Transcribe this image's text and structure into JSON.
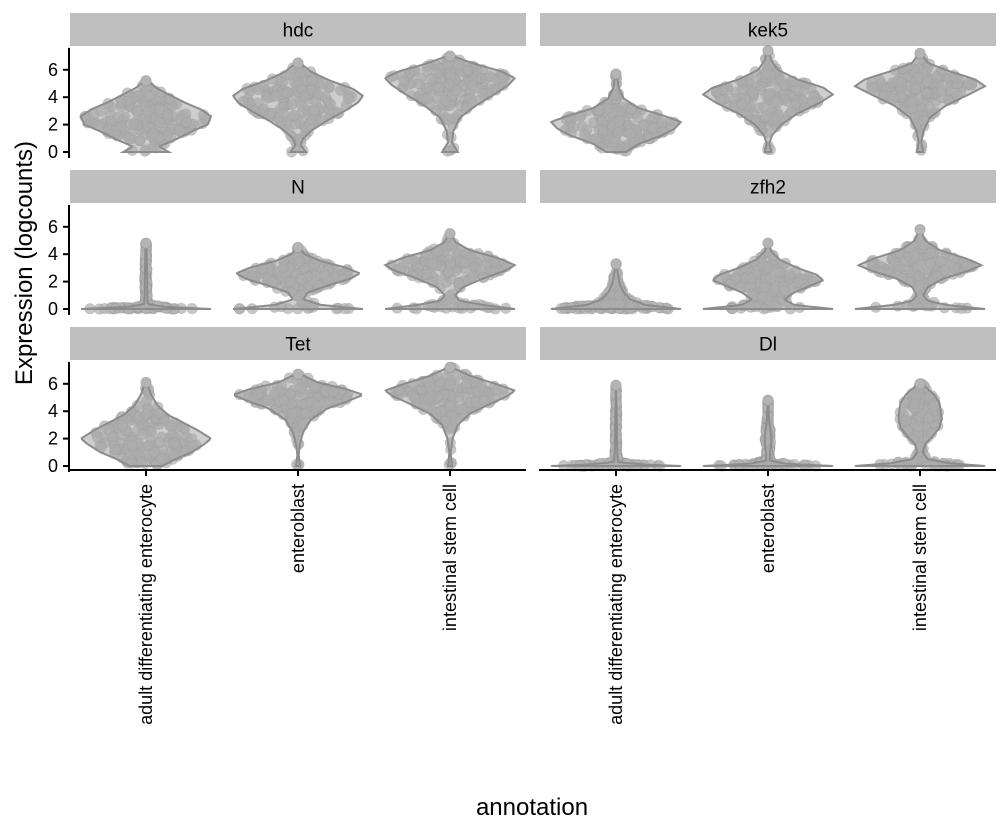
{
  "chart_data": {
    "type": "violin",
    "facet_layout": "3 rows x 2 columns",
    "xlabel": "annotation",
    "ylabel": "Expression (logcounts)",
    "categories": [
      "adult differentiating enterocyte",
      "enteroblast",
      "intestinal stem cell"
    ],
    "y_ticks": [
      0,
      2,
      4,
      6
    ],
    "ylim": [
      -0.2,
      7.6
    ],
    "colors": {
      "violin_fill": "#a6a6a6",
      "violin_outline": "#8c8c8c",
      "point": "#b4b4b4",
      "strip_background": "#bfbfbf",
      "axis": "#000000"
    },
    "panels": [
      {
        "gene": "hdc",
        "groups": [
          {
            "category": "adult differentiating enterocyte",
            "max": 5.2,
            "shape": [
              [
                0,
                0.35
              ],
              [
                0.4,
                0.2
              ],
              [
                0.9,
                0.45
              ],
              [
                1.5,
                0.7
              ],
              [
                2.0,
                0.95
              ],
              [
                2.6,
                1.0
              ],
              [
                3.1,
                0.85
              ],
              [
                3.6,
                0.6
              ],
              [
                4.2,
                0.35
              ],
              [
                4.7,
                0.15
              ],
              [
                5.2,
                0.03
              ]
            ]
          },
          {
            "category": "enteroblast",
            "max": 6.5,
            "shape": [
              [
                0,
                0.12
              ],
              [
                0.5,
                0.04
              ],
              [
                1.0,
                0.08
              ],
              [
                1.6,
                0.22
              ],
              [
                2.3,
                0.45
              ],
              [
                3.0,
                0.72
              ],
              [
                3.6,
                0.92
              ],
              [
                4.1,
                1.0
              ],
              [
                4.6,
                0.85
              ],
              [
                5.2,
                0.5
              ],
              [
                5.8,
                0.22
              ],
              [
                6.5,
                0.03
              ]
            ]
          },
          {
            "category": "intestinal stem cell",
            "max": 7.0,
            "shape": [
              [
                0,
                0.12
              ],
              [
                0.7,
                0.03
              ],
              [
                1.5,
                0.05
              ],
              [
                2.5,
                0.15
              ],
              [
                3.4,
                0.4
              ],
              [
                4.2,
                0.68
              ],
              [
                4.9,
                0.9
              ],
              [
                5.4,
                1.0
              ],
              [
                5.9,
                0.78
              ],
              [
                6.4,
                0.4
              ],
              [
                7.0,
                0.04
              ]
            ]
          }
        ]
      },
      {
        "gene": "kek5",
        "groups": [
          {
            "category": "adult differentiating enterocyte",
            "max": 5.7,
            "shape": [
              [
                0,
                0.15
              ],
              [
                0.6,
                0.35
              ],
              [
                1.2,
                0.7
              ],
              [
                1.7,
                0.9
              ],
              [
                2.2,
                1.0
              ],
              [
                2.7,
                0.7
              ],
              [
                3.2,
                0.35
              ],
              [
                3.9,
                0.12
              ],
              [
                4.7,
                0.04
              ],
              [
                5.7,
                0.01
              ]
            ]
          },
          {
            "category": "enteroblast",
            "max": 7.4,
            "shape": [
              [
                0,
                0.05
              ],
              [
                0.6,
                0.02
              ],
              [
                1.2,
                0.06
              ],
              [
                2.0,
                0.2
              ],
              [
                2.8,
                0.45
              ],
              [
                3.6,
                0.8
              ],
              [
                4.2,
                1.0
              ],
              [
                4.7,
                0.85
              ],
              [
                5.3,
                0.45
              ],
              [
                6.0,
                0.15
              ],
              [
                6.7,
                0.05
              ],
              [
                7.4,
                0.01
              ]
            ]
          },
          {
            "category": "intestinal stem cell",
            "max": 7.2,
            "shape": [
              [
                0,
                0.05
              ],
              [
                0.7,
                0.02
              ],
              [
                1.5,
                0.05
              ],
              [
                2.5,
                0.15
              ],
              [
                3.4,
                0.4
              ],
              [
                4.2,
                0.75
              ],
              [
                4.8,
                1.0
              ],
              [
                5.3,
                0.85
              ],
              [
                5.9,
                0.45
              ],
              [
                6.5,
                0.12
              ],
              [
                7.2,
                0.02
              ]
            ]
          }
        ]
      },
      {
        "gene": "N",
        "groups": [
          {
            "category": "adult differentiating enterocyte",
            "max": 4.8,
            "shape": [
              [
                0,
                1.0
              ],
              [
                0.15,
                0.3
              ],
              [
                0.35,
                0.03
              ],
              [
                1.0,
                0.02
              ],
              [
                2.0,
                0.02
              ],
              [
                3.0,
                0.015
              ],
              [
                4.0,
                0.01
              ],
              [
                4.8,
                0.005
              ]
            ]
          },
          {
            "category": "enteroblast",
            "max": 4.5,
            "shape": [
              [
                0,
                1.0
              ],
              [
                0.3,
                0.35
              ],
              [
                0.7,
                0.08
              ],
              [
                1.2,
                0.15
              ],
              [
                1.7,
                0.45
              ],
              [
                2.2,
                0.8
              ],
              [
                2.6,
                0.95
              ],
              [
                3.0,
                0.75
              ],
              [
                3.5,
                0.35
              ],
              [
                4.0,
                0.1
              ],
              [
                4.5,
                0.02
              ]
            ]
          },
          {
            "category": "intestinal stem cell",
            "max": 5.5,
            "shape": [
              [
                0,
                1.0
              ],
              [
                0.3,
                0.5
              ],
              [
                0.6,
                0.15
              ],
              [
                1.0,
                0.08
              ],
              [
                1.6,
                0.2
              ],
              [
                2.2,
                0.5
              ],
              [
                2.8,
                0.85
              ],
              [
                3.2,
                1.0
              ],
              [
                3.7,
                0.75
              ],
              [
                4.3,
                0.3
              ],
              [
                4.9,
                0.08
              ],
              [
                5.5,
                0.02
              ]
            ]
          }
        ]
      },
      {
        "gene": "zfh2",
        "groups": [
          {
            "category": "adult differentiating enterocyte",
            "max": 3.3,
            "shape": [
              [
                0,
                1.0
              ],
              [
                0.3,
                0.45
              ],
              [
                0.7,
                0.22
              ],
              [
                1.2,
                0.12
              ],
              [
                1.8,
                0.06
              ],
              [
                2.5,
                0.03
              ],
              [
                3.3,
                0.01
              ]
            ]
          },
          {
            "category": "enteroblast",
            "max": 4.8,
            "shape": [
              [
                0,
                1.0
              ],
              [
                0.3,
                0.4
              ],
              [
                0.7,
                0.25
              ],
              [
                1.2,
                0.4
              ],
              [
                1.7,
                0.65
              ],
              [
                2.1,
                0.85
              ],
              [
                2.5,
                0.75
              ],
              [
                3.0,
                0.45
              ],
              [
                3.6,
                0.18
              ],
              [
                4.2,
                0.05
              ],
              [
                4.8,
                0.01
              ]
            ]
          },
          {
            "category": "intestinal stem cell",
            "max": 5.8,
            "shape": [
              [
                0,
                1.0
              ],
              [
                0.3,
                0.4
              ],
              [
                0.6,
                0.12
              ],
              [
                1.0,
                0.05
              ],
              [
                1.6,
                0.12
              ],
              [
                2.2,
                0.35
              ],
              [
                2.8,
                0.75
              ],
              [
                3.2,
                0.95
              ],
              [
                3.7,
                0.7
              ],
              [
                4.3,
                0.3
              ],
              [
                5.0,
                0.08
              ],
              [
                5.8,
                0.01
              ]
            ]
          }
        ]
      },
      {
        "gene": "Tet",
        "groups": [
          {
            "category": "adult differentiating enterocyte",
            "max": 6.1,
            "shape": [
              [
                0,
                0.25
              ],
              [
                0.5,
                0.45
              ],
              [
                1.0,
                0.7
              ],
              [
                1.6,
                0.9
              ],
              [
                2.0,
                1.0
              ],
              [
                2.6,
                0.8
              ],
              [
                3.1,
                0.6
              ],
              [
                3.7,
                0.35
              ],
              [
                4.4,
                0.18
              ],
              [
                5.2,
                0.08
              ],
              [
                6.1,
                0.01
              ]
            ]
          },
          {
            "category": "enteroblast",
            "max": 6.7,
            "shape": [
              [
                0,
                0.03
              ],
              [
                0.8,
                0.01
              ],
              [
                1.6,
                0.03
              ],
              [
                2.5,
                0.08
              ],
              [
                3.4,
                0.2
              ],
              [
                4.2,
                0.45
              ],
              [
                4.8,
                0.8
              ],
              [
                5.2,
                1.0
              ],
              [
                5.6,
                0.75
              ],
              [
                6.1,
                0.3
              ],
              [
                6.7,
                0.04
              ]
            ]
          },
          {
            "category": "intestinal stem cell",
            "max": 7.2,
            "shape": [
              [
                0,
                0.03
              ],
              [
                1.0,
                0.01
              ],
              [
                2.0,
                0.04
              ],
              [
                3.0,
                0.12
              ],
              [
                3.8,
                0.3
              ],
              [
                4.5,
                0.6
              ],
              [
                5.1,
                0.88
              ],
              [
                5.5,
                1.0
              ],
              [
                6.0,
                0.7
              ],
              [
                6.6,
                0.3
              ],
              [
                7.2,
                0.03
              ]
            ]
          }
        ]
      },
      {
        "gene": "Dl",
        "groups": [
          {
            "category": "adult differentiating enterocyte",
            "max": 5.9,
            "shape": [
              [
                0,
                1.0
              ],
              [
                0.12,
                0.35
              ],
              [
                0.3,
                0.03
              ],
              [
                1.0,
                0.02
              ],
              [
                2.0,
                0.015
              ],
              [
                3.0,
                0.015
              ],
              [
                4.0,
                0.01
              ],
              [
                5.0,
                0.005
              ],
              [
                5.9,
                0.003
              ]
            ]
          },
          {
            "category": "enteroblast",
            "max": 4.8,
            "shape": [
              [
                0,
                1.0
              ],
              [
                0.15,
                0.3
              ],
              [
                0.4,
                0.03
              ],
              [
                1.0,
                0.03
              ],
              [
                1.6,
                0.05
              ],
              [
                2.2,
                0.05
              ],
              [
                2.8,
                0.03
              ],
              [
                3.5,
                0.015
              ],
              [
                4.2,
                0.008
              ],
              [
                4.8,
                0.003
              ]
            ]
          },
          {
            "category": "intestinal stem cell",
            "max": 6.0,
            "shape": [
              [
                0,
                1.0
              ],
              [
                0.2,
                0.45
              ],
              [
                0.5,
                0.12
              ],
              [
                1.0,
                0.04
              ],
              [
                1.6,
                0.08
              ],
              [
                2.2,
                0.2
              ],
              [
                2.8,
                0.3
              ],
              [
                3.4,
                0.33
              ],
              [
                4.0,
                0.32
              ],
              [
                4.6,
                0.3
              ],
              [
                5.2,
                0.22
              ],
              [
                5.7,
                0.1
              ],
              [
                6.0,
                0.03
              ]
            ]
          }
        ]
      }
    ]
  }
}
